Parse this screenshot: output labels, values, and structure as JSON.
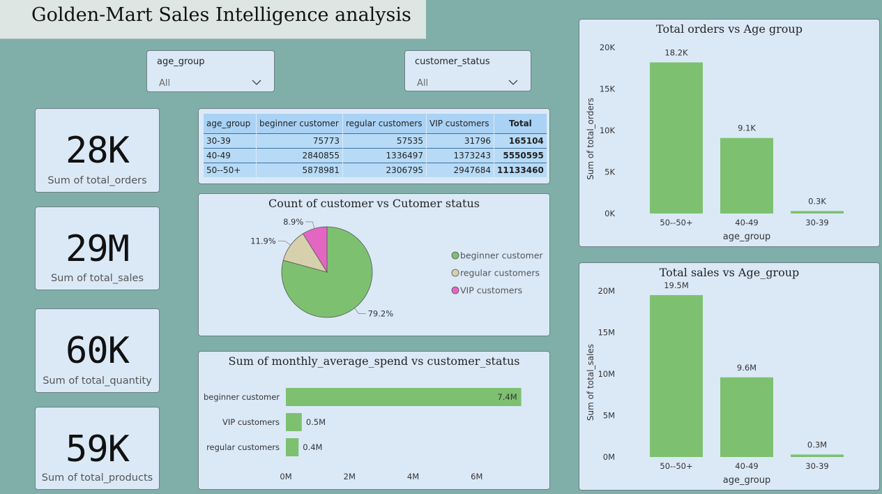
{
  "header": {
    "title": "Golden-Mart Sales Intelligence analysis"
  },
  "slicers": [
    {
      "label": "age_group",
      "value": "All"
    },
    {
      "label": "customer_status",
      "value": "All"
    }
  ],
  "kpis": [
    {
      "value": "28K",
      "label": "Sum of total_orders"
    },
    {
      "value": "29M",
      "label": "Sum of total_sales"
    },
    {
      "value": "60K",
      "label": "Sum of total_quantity"
    },
    {
      "value": "59K",
      "label": "Sum of total_products"
    }
  ],
  "matrix": {
    "headers": [
      "age_group",
      "beginner customer",
      "regular customers",
      "VIP customers",
      "Total"
    ],
    "rows": [
      [
        "30-39",
        "75773",
        "57535",
        "31796",
        "165104"
      ],
      [
        "40-49",
        "2840855",
        "1336497",
        "1373243",
        "5550595"
      ],
      [
        "50--50+",
        "5878981",
        "2306795",
        "2947684",
        "11133460"
      ]
    ]
  },
  "colors": {
    "green": "#7dc170",
    "tan": "#d6d0ac",
    "pink": "#e367c2",
    "panel": "#dbe9f7",
    "header": "#a9d2f5"
  },
  "chart_data": [
    {
      "type": "pie",
      "title": "Count of customer vs Cutomer status",
      "labels": [
        "beginner customer",
        "regular customers",
        "VIP customers"
      ],
      "values": [
        79.2,
        11.9,
        8.9
      ],
      "data_labels": [
        "79.2%",
        "11.9%",
        "8.9%"
      ],
      "legend": "right"
    },
    {
      "type": "bar",
      "orientation": "horizontal",
      "title": "Sum of monthly_average_spend vs customer_status",
      "categories": [
        "beginner customer",
        "VIP customers",
        "regular customers"
      ],
      "values": [
        7.4,
        0.5,
        0.4
      ],
      "data_labels": [
        "7.4M",
        "0.5M",
        "0.4M"
      ],
      "xticks": [
        "0M",
        "2M",
        "4M",
        "6M"
      ],
      "xlim": [
        0,
        8
      ]
    },
    {
      "type": "bar",
      "title": "Total orders vs Age group",
      "categories": [
        "50--50+",
        "40-49",
        "30-39"
      ],
      "values": [
        18.2,
        9.1,
        0.3
      ],
      "data_labels": [
        "18.2K",
        "9.1K",
        "0.3K"
      ],
      "yticks": [
        "0K",
        "5K",
        "10K",
        "15K",
        "20K"
      ],
      "xlabel": "age_group",
      "ylabel": "Sum of total_orders",
      "ylim": [
        0,
        20
      ]
    },
    {
      "type": "bar",
      "title": "Total sales vs Age_group",
      "categories": [
        "50--50+",
        "40-49",
        "30-39"
      ],
      "values": [
        19.5,
        9.6,
        0.3
      ],
      "data_labels": [
        "19.5M",
        "9.6M",
        "0.3M"
      ],
      "yticks": [
        "0M",
        "5M",
        "10M",
        "15M",
        "20M"
      ],
      "xlabel": "age_group",
      "ylabel": "Sum of total_sales",
      "ylim": [
        0,
        20
      ]
    }
  ]
}
